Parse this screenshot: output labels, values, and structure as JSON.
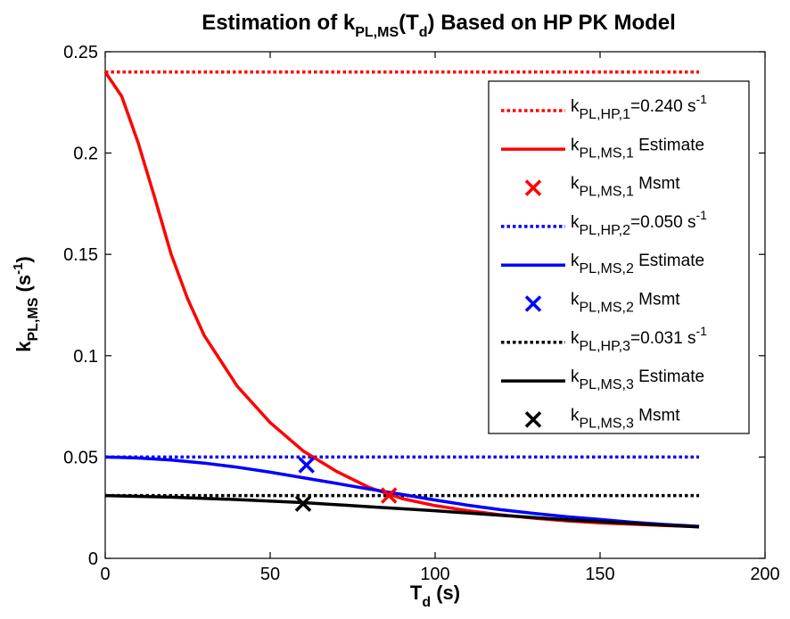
{
  "chart_data": {
    "type": "line",
    "title": {
      "main": "Estimation of k",
      "sub": "PL,MS",
      "paren_open": "(T",
      "paren_sub": "d",
      "rest": ") Based on HP PK Model"
    },
    "xlabel": {
      "main": "T",
      "sub": "d",
      "rest": " (s)"
    },
    "ylabel": {
      "main": "k",
      "sub": "PL,MS",
      "rest1": " (s",
      "sup": "-1",
      "rest2": ")"
    },
    "xlim": [
      0,
      200
    ],
    "ylim": [
      0,
      0.25
    ],
    "xticks": [
      0,
      50,
      100,
      150,
      200
    ],
    "xtick_labels": [
      "0",
      "50",
      "100",
      "150",
      "200"
    ],
    "yticks": [
      0,
      0.05,
      0.1,
      0.15,
      0.2,
      0.25
    ],
    "ytick_labels": [
      "0",
      "0.05",
      "0.1",
      "0.15",
      "0.2",
      "0.25"
    ],
    "grid": false,
    "legend_position": "top-right",
    "colors": {
      "red": "#ff0000",
      "blue": "#0000ff",
      "black": "#000000"
    },
    "series": [
      {
        "name": "kPL,HP,1=0.240 s-1",
        "style": "dotted",
        "color": "#ff0000",
        "x": [
          0,
          180
        ],
        "y": [
          0.24,
          0.24
        ],
        "legend": {
          "k": "k",
          "sub": "PL,HP,1",
          "text": "=0.240 s",
          "sup": "-1"
        }
      },
      {
        "name": "kPL,MS,1 Estimate",
        "style": "solid",
        "color": "#ff0000",
        "x": [
          0,
          5,
          10,
          15,
          20,
          25,
          30,
          40,
          50,
          60,
          70,
          80,
          90,
          100,
          110,
          120,
          130,
          140,
          150,
          160,
          170,
          180
        ],
        "y": [
          0.24,
          0.228,
          0.205,
          0.178,
          0.15,
          0.128,
          0.11,
          0.085,
          0.067,
          0.053,
          0.043,
          0.035,
          0.0295,
          0.026,
          0.0235,
          0.0215,
          0.0198,
          0.0185,
          0.0175,
          0.0168,
          0.0162,
          0.0156
        ],
        "legend": {
          "k": "k",
          "sub": "PL,MS,1",
          "text": " Estimate",
          "sup": ""
        }
      },
      {
        "name": "kPL,MS,1 Msmt",
        "style": "marker",
        "color": "#ff0000",
        "x": [
          86
        ],
        "y": [
          0.031
        ],
        "legend": {
          "k": "k",
          "sub": "PL,MS,1",
          "text": " Msmt",
          "sup": ""
        }
      },
      {
        "name": "kPL,HP,2=0.050 s-1",
        "style": "dotted",
        "color": "#0000ff",
        "x": [
          0,
          180
        ],
        "y": [
          0.05,
          0.05
        ],
        "legend": {
          "k": "k",
          "sub": "PL,HP,2",
          "text": "=0.050 s",
          "sup": "-1"
        }
      },
      {
        "name": "kPL,MS,2 Estimate",
        "style": "solid",
        "color": "#0000ff",
        "x": [
          0,
          10,
          20,
          30,
          40,
          50,
          60,
          70,
          80,
          90,
          100,
          110,
          120,
          130,
          140,
          150,
          160,
          170,
          180
        ],
        "y": [
          0.05,
          0.0495,
          0.0485,
          0.047,
          0.045,
          0.0425,
          0.0398,
          0.037,
          0.0342,
          0.0315,
          0.0288,
          0.0262,
          0.024,
          0.0222,
          0.0205,
          0.0192,
          0.0178,
          0.0167,
          0.0158
        ],
        "legend": {
          "k": "k",
          "sub": "PL,MS,2",
          "text": " Estimate",
          "sup": ""
        }
      },
      {
        "name": "kPL,MS,2 Msmt",
        "style": "marker",
        "color": "#0000ff",
        "x": [
          61
        ],
        "y": [
          0.046
        ],
        "legend": {
          "k": "k",
          "sub": "PL,MS,2",
          "text": " Msmt",
          "sup": ""
        }
      },
      {
        "name": "kPL,HP,3=0.031 s-1",
        "style": "dotted",
        "color": "#000000",
        "x": [
          0,
          180
        ],
        "y": [
          0.031,
          0.031
        ],
        "legend": {
          "k": "k",
          "sub": "PL,HP,3",
          "text": "=0.031 s",
          "sup": "-1"
        }
      },
      {
        "name": "kPL,MS,3 Estimate",
        "style": "solid",
        "color": "#000000",
        "x": [
          0,
          20,
          40,
          60,
          80,
          100,
          120,
          140,
          160,
          180
        ],
        "y": [
          0.031,
          0.0302,
          0.029,
          0.0275,
          0.0255,
          0.0235,
          0.0212,
          0.019,
          0.0172,
          0.0155
        ],
        "legend": {
          "k": "k",
          "sub": "PL,MS,3",
          "text": " Estimate",
          "sup": ""
        }
      },
      {
        "name": "kPL,MS,3 Msmt",
        "style": "marker",
        "color": "#000000",
        "x": [
          60
        ],
        "y": [
          0.027
        ],
        "legend": {
          "k": "k",
          "sub": "PL,MS,3",
          "text": " Msmt",
          "sup": ""
        }
      }
    ]
  }
}
